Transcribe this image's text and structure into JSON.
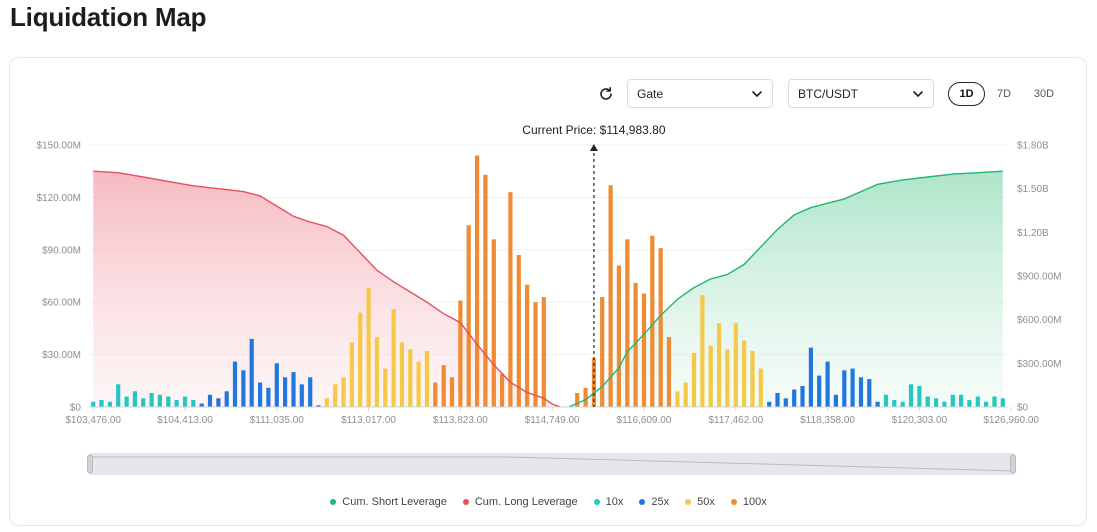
{
  "page": {
    "title": "Liquidation Map"
  },
  "controls": {
    "exchange": "Gate",
    "pair": "BTC/USDT",
    "ranges": [
      "1D",
      "7D",
      "30D"
    ],
    "selected_range": "1D"
  },
  "colors": {
    "short": "#22b573",
    "long": "#e5505a",
    "x10": "#24c7c1",
    "x25": "#2277dd",
    "x50": "#f6c847",
    "x100": "#ee8b33"
  },
  "chart_data": {
    "type": "bar",
    "current_price_label": "Current Price: $114,983.80",
    "current_price_index": 60,
    "x_tick_labels": [
      "$103,476.00",
      "$104,413.00",
      "$111,035.00",
      "$113,017.00",
      "$113,823.00",
      "$114,749.00",
      "$116,609.00",
      "$117,462.00",
      "$118,358.00",
      "$120,303.00",
      "$126,960.00"
    ],
    "x_tick_indices": [
      0,
      11,
      22,
      33,
      44,
      55,
      66,
      77,
      88,
      99,
      110
    ],
    "y_left_ticks": [
      "$0",
      "$30.00M",
      "$60.00M",
      "$90.00M",
      "$120.00M",
      "$150.00M"
    ],
    "y_left_max": 150,
    "y_right_ticks": [
      "$0",
      "$300.00M",
      "$600.00M",
      "$900.00M",
      "$1.20B",
      "$1.50B",
      "$1.80B"
    ],
    "y_right_max": 1800,
    "legend": [
      "Cum. Short Leverage",
      "Cum. Long Leverage",
      "10x",
      "25x",
      "50x",
      "100x"
    ],
    "bars_unit": "$M",
    "bars": [
      {
        "i": 0,
        "v": 3,
        "lev": "10x"
      },
      {
        "i": 1,
        "v": 4,
        "lev": "10x"
      },
      {
        "i": 2,
        "v": 3,
        "lev": "10x"
      },
      {
        "i": 3,
        "v": 13,
        "lev": "10x"
      },
      {
        "i": 4,
        "v": 6,
        "lev": "10x"
      },
      {
        "i": 5,
        "v": 9,
        "lev": "10x"
      },
      {
        "i": 6,
        "v": 5,
        "lev": "10x"
      },
      {
        "i": 7,
        "v": 8,
        "lev": "10x"
      },
      {
        "i": 8,
        "v": 7,
        "lev": "10x"
      },
      {
        "i": 9,
        "v": 6,
        "lev": "10x"
      },
      {
        "i": 10,
        "v": 4,
        "lev": "10x"
      },
      {
        "i": 11,
        "v": 6,
        "lev": "10x"
      },
      {
        "i": 12,
        "v": 4,
        "lev": "10x"
      },
      {
        "i": 13,
        "v": 2,
        "lev": "25x"
      },
      {
        "i": 14,
        "v": 7,
        "lev": "25x"
      },
      {
        "i": 15,
        "v": 5,
        "lev": "25x"
      },
      {
        "i": 16,
        "v": 9,
        "lev": "25x"
      },
      {
        "i": 17,
        "v": 26,
        "lev": "25x"
      },
      {
        "i": 18,
        "v": 21,
        "lev": "25x"
      },
      {
        "i": 19,
        "v": 39,
        "lev": "25x"
      },
      {
        "i": 20,
        "v": 14,
        "lev": "25x"
      },
      {
        "i": 21,
        "v": 11,
        "lev": "25x"
      },
      {
        "i": 22,
        "v": 25,
        "lev": "25x"
      },
      {
        "i": 23,
        "v": 17,
        "lev": "25x"
      },
      {
        "i": 24,
        "v": 20,
        "lev": "25x"
      },
      {
        "i": 25,
        "v": 13,
        "lev": "25x"
      },
      {
        "i": 26,
        "v": 17,
        "lev": "25x"
      },
      {
        "i": 27,
        "v": 1,
        "lev": "25x"
      },
      {
        "i": 28,
        "v": 5,
        "lev": "50x"
      },
      {
        "i": 29,
        "v": 13,
        "lev": "50x"
      },
      {
        "i": 30,
        "v": 17,
        "lev": "50x"
      },
      {
        "i": 31,
        "v": 37,
        "lev": "50x"
      },
      {
        "i": 32,
        "v": 54,
        "lev": "50x"
      },
      {
        "i": 33,
        "v": 68,
        "lev": "50x"
      },
      {
        "i": 34,
        "v": 40,
        "lev": "50x"
      },
      {
        "i": 35,
        "v": 22,
        "lev": "50x"
      },
      {
        "i": 36,
        "v": 56,
        "lev": "50x"
      },
      {
        "i": 37,
        "v": 37,
        "lev": "50x"
      },
      {
        "i": 38,
        "v": 33,
        "lev": "50x"
      },
      {
        "i": 39,
        "v": 26,
        "lev": "50x"
      },
      {
        "i": 40,
        "v": 32,
        "lev": "50x"
      },
      {
        "i": 41,
        "v": 14,
        "lev": "100x"
      },
      {
        "i": 42,
        "v": 24,
        "lev": "100x"
      },
      {
        "i": 43,
        "v": 17,
        "lev": "100x"
      },
      {
        "i": 44,
        "v": 61,
        "lev": "100x"
      },
      {
        "i": 45,
        "v": 104,
        "lev": "100x"
      },
      {
        "i": 46,
        "v": 144,
        "lev": "100x"
      },
      {
        "i": 47,
        "v": 133,
        "lev": "100x"
      },
      {
        "i": 48,
        "v": 96,
        "lev": "100x"
      },
      {
        "i": 49,
        "v": 19,
        "lev": "100x"
      },
      {
        "i": 50,
        "v": 123,
        "lev": "100x"
      },
      {
        "i": 51,
        "v": 87,
        "lev": "100x"
      },
      {
        "i": 52,
        "v": 70,
        "lev": "100x"
      },
      {
        "i": 53,
        "v": 60,
        "lev": "100x"
      },
      {
        "i": 54,
        "v": 63,
        "lev": "100x"
      },
      {
        "i": 58,
        "v": 8,
        "lev": "100x"
      },
      {
        "i": 59,
        "v": 11,
        "lev": "100x"
      },
      {
        "i": 60,
        "v": 28,
        "lev": "100x"
      },
      {
        "i": 61,
        "v": 63,
        "lev": "100x"
      },
      {
        "i": 62,
        "v": 127,
        "lev": "100x"
      },
      {
        "i": 63,
        "v": 81,
        "lev": "100x"
      },
      {
        "i": 64,
        "v": 96,
        "lev": "100x"
      },
      {
        "i": 65,
        "v": 71,
        "lev": "100x"
      },
      {
        "i": 66,
        "v": 65,
        "lev": "100x"
      },
      {
        "i": 67,
        "v": 98,
        "lev": "100x"
      },
      {
        "i": 68,
        "v": 91,
        "lev": "100x"
      },
      {
        "i": 69,
        "v": 40,
        "lev": "100x"
      },
      {
        "i": 70,
        "v": 9,
        "lev": "50x"
      },
      {
        "i": 71,
        "v": 14,
        "lev": "50x"
      },
      {
        "i": 72,
        "v": 31,
        "lev": "50x"
      },
      {
        "i": 73,
        "v": 64,
        "lev": "50x"
      },
      {
        "i": 74,
        "v": 35,
        "lev": "50x"
      },
      {
        "i": 75,
        "v": 48,
        "lev": "50x"
      },
      {
        "i": 76,
        "v": 33,
        "lev": "50x"
      },
      {
        "i": 77,
        "v": 48,
        "lev": "50x"
      },
      {
        "i": 78,
        "v": 38,
        "lev": "50x"
      },
      {
        "i": 79,
        "v": 32,
        "lev": "50x"
      },
      {
        "i": 80,
        "v": 22,
        "lev": "50x"
      },
      {
        "i": 81,
        "v": 3,
        "lev": "25x"
      },
      {
        "i": 82,
        "v": 8,
        "lev": "25x"
      },
      {
        "i": 83,
        "v": 5,
        "lev": "25x"
      },
      {
        "i": 84,
        "v": 10,
        "lev": "25x"
      },
      {
        "i": 85,
        "v": 12,
        "lev": "25x"
      },
      {
        "i": 86,
        "v": 34,
        "lev": "25x"
      },
      {
        "i": 87,
        "v": 18,
        "lev": "25x"
      },
      {
        "i": 88,
        "v": 26,
        "lev": "25x"
      },
      {
        "i": 89,
        "v": 7,
        "lev": "25x"
      },
      {
        "i": 90,
        "v": 21,
        "lev": "25x"
      },
      {
        "i": 91,
        "v": 22,
        "lev": "25x"
      },
      {
        "i": 92,
        "v": 17,
        "lev": "25x"
      },
      {
        "i": 93,
        "v": 16,
        "lev": "25x"
      },
      {
        "i": 94,
        "v": 3,
        "lev": "25x"
      },
      {
        "i": 95,
        "v": 7,
        "lev": "10x"
      },
      {
        "i": 96,
        "v": 4,
        "lev": "10x"
      },
      {
        "i": 97,
        "v": 3,
        "lev": "10x"
      },
      {
        "i": 98,
        "v": 13,
        "lev": "10x"
      },
      {
        "i": 99,
        "v": 12,
        "lev": "10x"
      },
      {
        "i": 100,
        "v": 6,
        "lev": "10x"
      },
      {
        "i": 101,
        "v": 5,
        "lev": "10x"
      },
      {
        "i": 102,
        "v": 3,
        "lev": "10x"
      },
      {
        "i": 103,
        "v": 7,
        "lev": "10x"
      },
      {
        "i": 104,
        "v": 7,
        "lev": "10x"
      },
      {
        "i": 105,
        "v": 4,
        "lev": "10x"
      },
      {
        "i": 106,
        "v": 6,
        "lev": "10x"
      },
      {
        "i": 107,
        "v": 3,
        "lev": "10x"
      },
      {
        "i": 108,
        "v": 6,
        "lev": "10x"
      },
      {
        "i": 109,
        "v": 5,
        "lev": "10x"
      }
    ],
    "cum_long_unit": "$B",
    "cum_long": [
      {
        "i": 0,
        "v": 1.62
      },
      {
        "i": 3,
        "v": 1.61
      },
      {
        "i": 6,
        "v": 1.58
      },
      {
        "i": 9,
        "v": 1.55
      },
      {
        "i": 12,
        "v": 1.52
      },
      {
        "i": 15,
        "v": 1.5
      },
      {
        "i": 18,
        "v": 1.48
      },
      {
        "i": 20,
        "v": 1.45
      },
      {
        "i": 22,
        "v": 1.38
      },
      {
        "i": 24,
        "v": 1.31
      },
      {
        "i": 26,
        "v": 1.27
      },
      {
        "i": 28,
        "v": 1.24
      },
      {
        "i": 30,
        "v": 1.18
      },
      {
        "i": 32,
        "v": 1.06
      },
      {
        "i": 34,
        "v": 0.94
      },
      {
        "i": 36,
        "v": 0.86
      },
      {
        "i": 38,
        "v": 0.79
      },
      {
        "i": 40,
        "v": 0.72
      },
      {
        "i": 42,
        "v": 0.64
      },
      {
        "i": 44,
        "v": 0.58
      },
      {
        "i": 46,
        "v": 0.43
      },
      {
        "i": 48,
        "v": 0.29
      },
      {
        "i": 50,
        "v": 0.17
      },
      {
        "i": 52,
        "v": 0.1
      },
      {
        "i": 54,
        "v": 0.06
      },
      {
        "i": 55,
        "v": 0.02
      },
      {
        "i": 56,
        "v": 0.0
      }
    ],
    "cum_short_unit": "$B",
    "cum_short": [
      {
        "i": 57,
        "v": 0.0
      },
      {
        "i": 59,
        "v": 0.05
      },
      {
        "i": 61,
        "v": 0.14
      },
      {
        "i": 63,
        "v": 0.27
      },
      {
        "i": 64,
        "v": 0.38
      },
      {
        "i": 66,
        "v": 0.5
      },
      {
        "i": 68,
        "v": 0.63
      },
      {
        "i": 70,
        "v": 0.74
      },
      {
        "i": 72,
        "v": 0.82
      },
      {
        "i": 74,
        "v": 0.88
      },
      {
        "i": 76,
        "v": 0.91
      },
      {
        "i": 78,
        "v": 0.98
      },
      {
        "i": 80,
        "v": 1.1
      },
      {
        "i": 82,
        "v": 1.22
      },
      {
        "i": 84,
        "v": 1.32
      },
      {
        "i": 86,
        "v": 1.37
      },
      {
        "i": 88,
        "v": 1.4
      },
      {
        "i": 90,
        "v": 1.43
      },
      {
        "i": 92,
        "v": 1.48
      },
      {
        "i": 94,
        "v": 1.53
      },
      {
        "i": 97,
        "v": 1.56
      },
      {
        "i": 100,
        "v": 1.58
      },
      {
        "i": 103,
        "v": 1.6
      },
      {
        "i": 106,
        "v": 1.61
      },
      {
        "i": 109,
        "v": 1.62
      }
    ]
  }
}
